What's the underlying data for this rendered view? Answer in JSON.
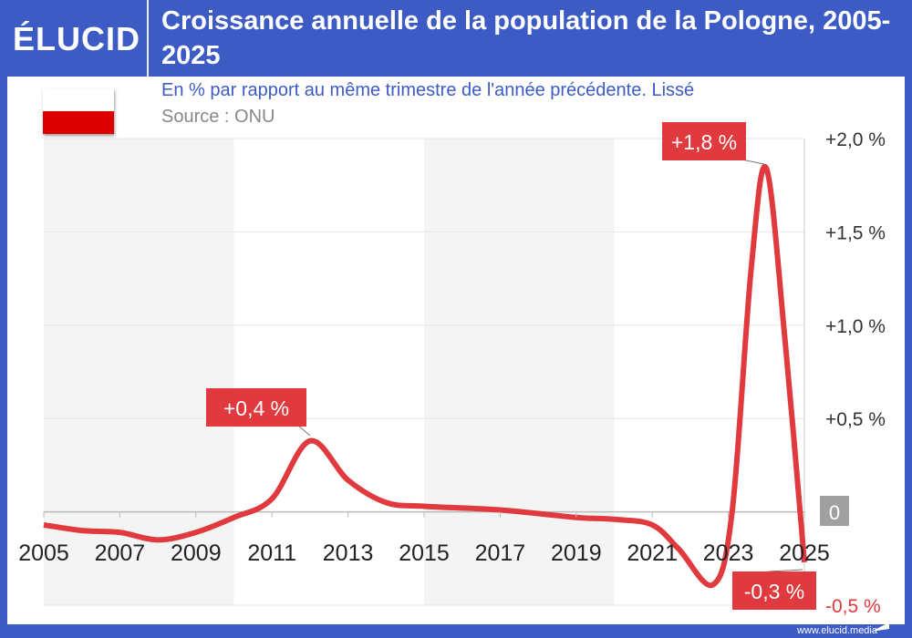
{
  "header": {
    "logo": "ÉLUCID",
    "title": "Croissance annuelle de la population de la Pologne, 2005-2025"
  },
  "subtitle": "En % par rapport au même trimestre de l'année précédente. Lissé",
  "source": "Source : ONU",
  "footer": "www.elucid.media",
  "colors": {
    "frame": "#3d5bc4",
    "line": "#e0393e",
    "label_bg": "#e0393e",
    "zero_badge": "#a0a0a0",
    "flag_white": "#ffffff",
    "flag_red": "#dc0000"
  },
  "chart_data": {
    "type": "line",
    "title": "Croissance annuelle de la population de la Pologne, 2005-2025",
    "xlim": [
      2005,
      2025
    ],
    "ylim": [
      -0.5,
      2.0
    ],
    "x_ticks": [
      "2005",
      "2007",
      "2009",
      "2011",
      "2013",
      "2015",
      "2017",
      "2019",
      "2021",
      "2023",
      "2025"
    ],
    "y_ticks": [
      {
        "v": 2.0,
        "label": "+2,0 %"
      },
      {
        "v": 1.5,
        "label": "+1,5 %"
      },
      {
        "v": 1.0,
        "label": "+1,0 %"
      },
      {
        "v": 0.5,
        "label": "+0,5 %"
      },
      {
        "v": 0,
        "label": "0"
      },
      {
        "v": -0.5,
        "label": "-0,5 %"
      }
    ],
    "grid": true,
    "x": [
      2005,
      2006,
      2007,
      2008,
      2009,
      2010,
      2011,
      2012,
      2013,
      2014,
      2015,
      2017,
      2019,
      2020,
      2021,
      2021.7,
      2022.6,
      2023.1,
      2023.6,
      2024,
      2024.5,
      2025
    ],
    "y": [
      -0.07,
      -0.1,
      -0.11,
      -0.15,
      -0.11,
      -0.03,
      0.07,
      0.38,
      0.17,
      0.05,
      0.03,
      0.01,
      -0.03,
      -0.04,
      -0.07,
      -0.2,
      -0.39,
      0.0,
      1.3,
      1.84,
      0.9,
      -0.27
    ],
    "annotations": [
      {
        "x": 2012,
        "y": 0.38,
        "label": "+0,4 %"
      },
      {
        "x": 2024,
        "y": 1.84,
        "label": "+1,8 %"
      },
      {
        "x": 2025,
        "y": -0.27,
        "label": "-0,3 %"
      }
    ]
  }
}
